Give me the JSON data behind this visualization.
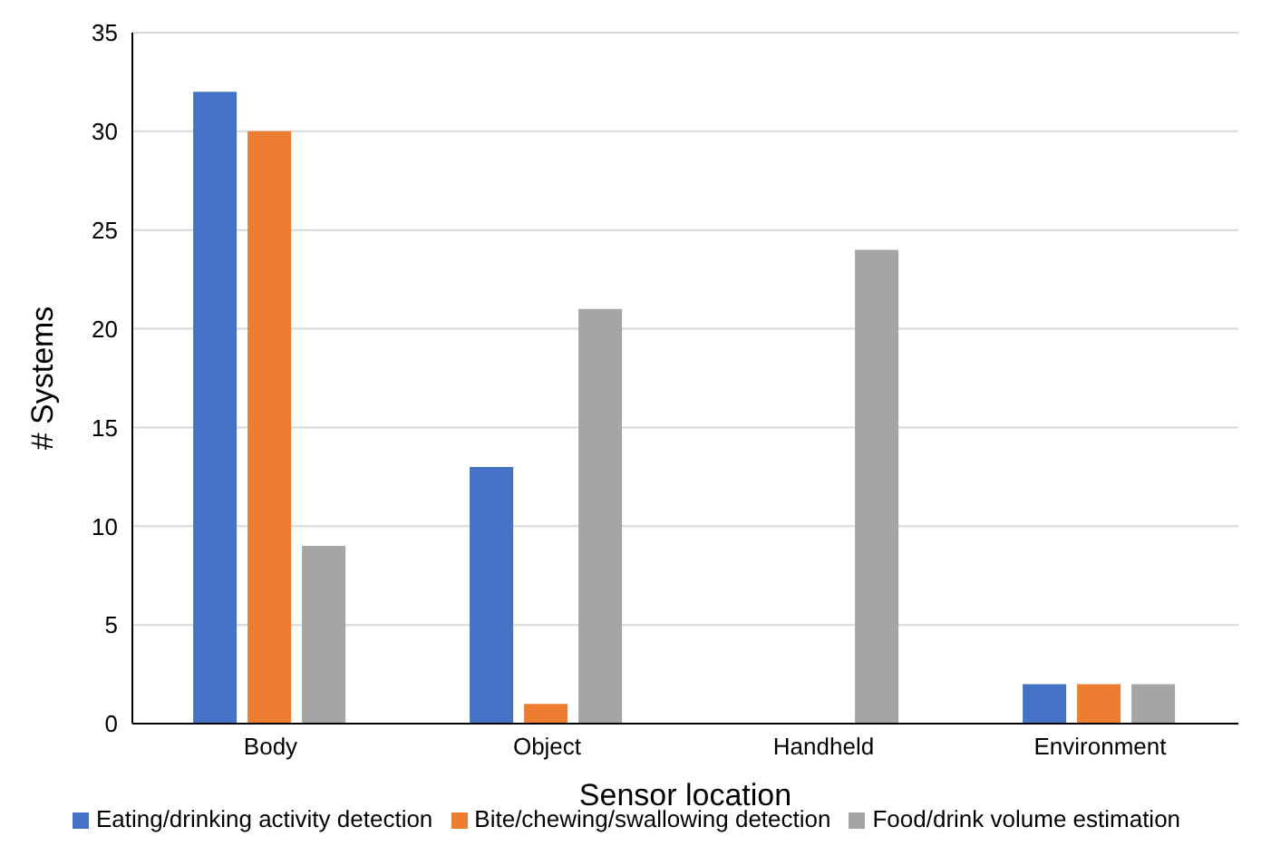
{
  "chart_data": {
    "type": "bar",
    "xlabel": "Sensor location",
    "ylabel": "# Systems",
    "categories": [
      "Body",
      "Object",
      "Handheld",
      "Environment"
    ],
    "series": [
      {
        "name": "Eating/drinking activity detection",
        "color": "#4472c4",
        "values": [
          32,
          13,
          0,
          2
        ]
      },
      {
        "name": "Bite/chewing/swallowing detection",
        "color": "#ed7d31",
        "values": [
          30,
          1,
          0,
          2
        ]
      },
      {
        "name": "Food/drink volume estimation",
        "color": "#a5a5a5",
        "values": [
          9,
          21,
          24,
          2
        ]
      }
    ],
    "ylim": [
      0,
      35
    ],
    "yticks": [
      0,
      5,
      10,
      15,
      20,
      25,
      30,
      35
    ],
    "grid": "y",
    "legend": "bottom"
  }
}
